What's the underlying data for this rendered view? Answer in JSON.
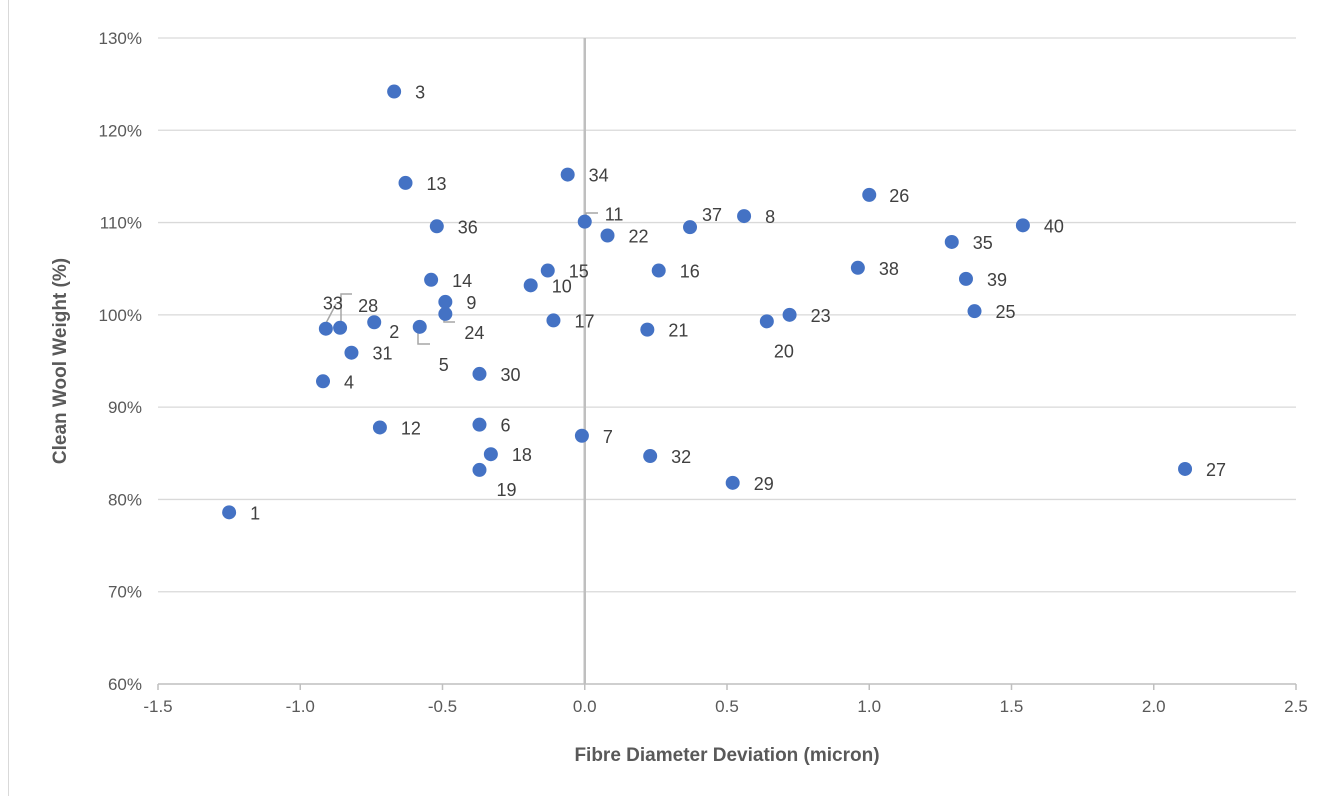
{
  "chart_data": {
    "type": "scatter",
    "title": "",
    "xlabel": "Fibre Diameter Deviation (micron)",
    "ylabel": "Clean Wool Weight (%)",
    "xlim": [
      -1.5,
      2.5
    ],
    "ylim": [
      60,
      130
    ],
    "x_ticks": [
      "-1.5",
      "-1.0",
      "-0.5",
      "0.0",
      "0.5",
      "1.0",
      "1.5",
      "2.0",
      "2.5"
    ],
    "y_ticks": [
      "60%",
      "70%",
      "80%",
      "90%",
      "100%",
      "110%",
      "120%",
      "130%"
    ],
    "grid": "horizontal",
    "legend": "none",
    "marker_color": "#4472C4",
    "points": [
      {
        "label": "1",
        "x": -1.25,
        "y": 78.6
      },
      {
        "label": "2",
        "x": -0.74,
        "y": 99.2
      },
      {
        "label": "3",
        "x": -0.67,
        "y": 124.2
      },
      {
        "label": "4",
        "x": -0.92,
        "y": 92.8
      },
      {
        "label": "5",
        "x": -0.58,
        "y": 98.7
      },
      {
        "label": "6",
        "x": -0.37,
        "y": 88.1
      },
      {
        "label": "7",
        "x": -0.01,
        "y": 86.9
      },
      {
        "label": "8",
        "x": 0.56,
        "y": 110.7
      },
      {
        "label": "9",
        "x": -0.49,
        "y": 101.4
      },
      {
        "label": "10",
        "x": -0.19,
        "y": 103.2
      },
      {
        "label": "11",
        "x": 0.0,
        "y": 110.1
      },
      {
        "label": "12",
        "x": -0.72,
        "y": 87.8
      },
      {
        "label": "13",
        "x": -0.63,
        "y": 114.3
      },
      {
        "label": "14",
        "x": -0.54,
        "y": 103.8
      },
      {
        "label": "15",
        "x": -0.13,
        "y": 104.8
      },
      {
        "label": "16",
        "x": 0.26,
        "y": 104.8
      },
      {
        "label": "17",
        "x": -0.11,
        "y": 99.4
      },
      {
        "label": "18",
        "x": -0.33,
        "y": 84.9
      },
      {
        "label": "19",
        "x": -0.37,
        "y": 83.2
      },
      {
        "label": "20",
        "x": 0.64,
        "y": 99.3
      },
      {
        "label": "21",
        "x": 0.22,
        "y": 98.4
      },
      {
        "label": "22",
        "x": 0.08,
        "y": 108.6
      },
      {
        "label": "23",
        "x": 0.72,
        "y": 100.0
      },
      {
        "label": "24",
        "x": -0.49,
        "y": 100.1
      },
      {
        "label": "25",
        "x": 1.37,
        "y": 100.4
      },
      {
        "label": "26",
        "x": 1.0,
        "y": 113.0
      },
      {
        "label": "27",
        "x": 2.11,
        "y": 83.3
      },
      {
        "label": "28",
        "x": -0.86,
        "y": 98.6
      },
      {
        "label": "29",
        "x": 0.52,
        "y": 81.8
      },
      {
        "label": "30",
        "x": -0.37,
        "y": 93.6
      },
      {
        "label": "31",
        "x": -0.82,
        "y": 95.9
      },
      {
        "label": "32",
        "x": 0.23,
        "y": 84.7
      },
      {
        "label": "33",
        "x": -0.91,
        "y": 98.5
      },
      {
        "label": "34",
        "x": -0.06,
        "y": 115.2
      },
      {
        "label": "35",
        "x": 1.29,
        "y": 107.9
      },
      {
        "label": "36",
        "x": -0.52,
        "y": 109.6
      },
      {
        "label": "37",
        "x": 0.37,
        "y": 109.5
      },
      {
        "label": "38",
        "x": 0.96,
        "y": 105.1
      },
      {
        "label": "39",
        "x": 1.34,
        "y": 103.9
      },
      {
        "label": "40",
        "x": 1.54,
        "y": 109.7
      }
    ]
  }
}
